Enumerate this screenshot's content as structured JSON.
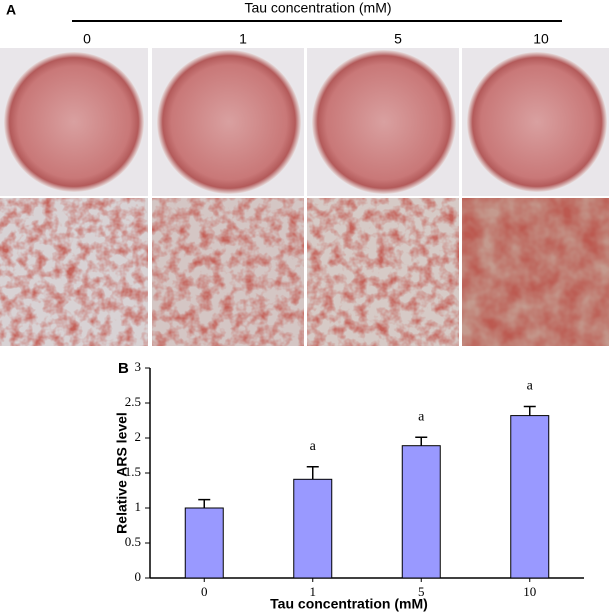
{
  "panel_a": {
    "label": "A",
    "title": "Tau concentration (mM)",
    "columns": [
      "0",
      "1",
      "5",
      "10"
    ]
  },
  "chart_data": {
    "type": "bar",
    "label": "B",
    "y_label": "Relative ARS level",
    "x_label": "Tau concentration (mM)",
    "categories": [
      "0",
      "1",
      "5",
      "10"
    ],
    "values": [
      1.0,
      1.41,
      1.89,
      2.32
    ],
    "errors": [
      0.12,
      0.18,
      0.12,
      0.13
    ],
    "annotations": [
      null,
      "a",
      "a",
      "a"
    ],
    "color": "#9999ff",
    "ylim": [
      0,
      3
    ],
    "yticks": [
      0,
      0.5,
      1,
      1.5,
      2,
      2.5,
      3
    ]
  }
}
